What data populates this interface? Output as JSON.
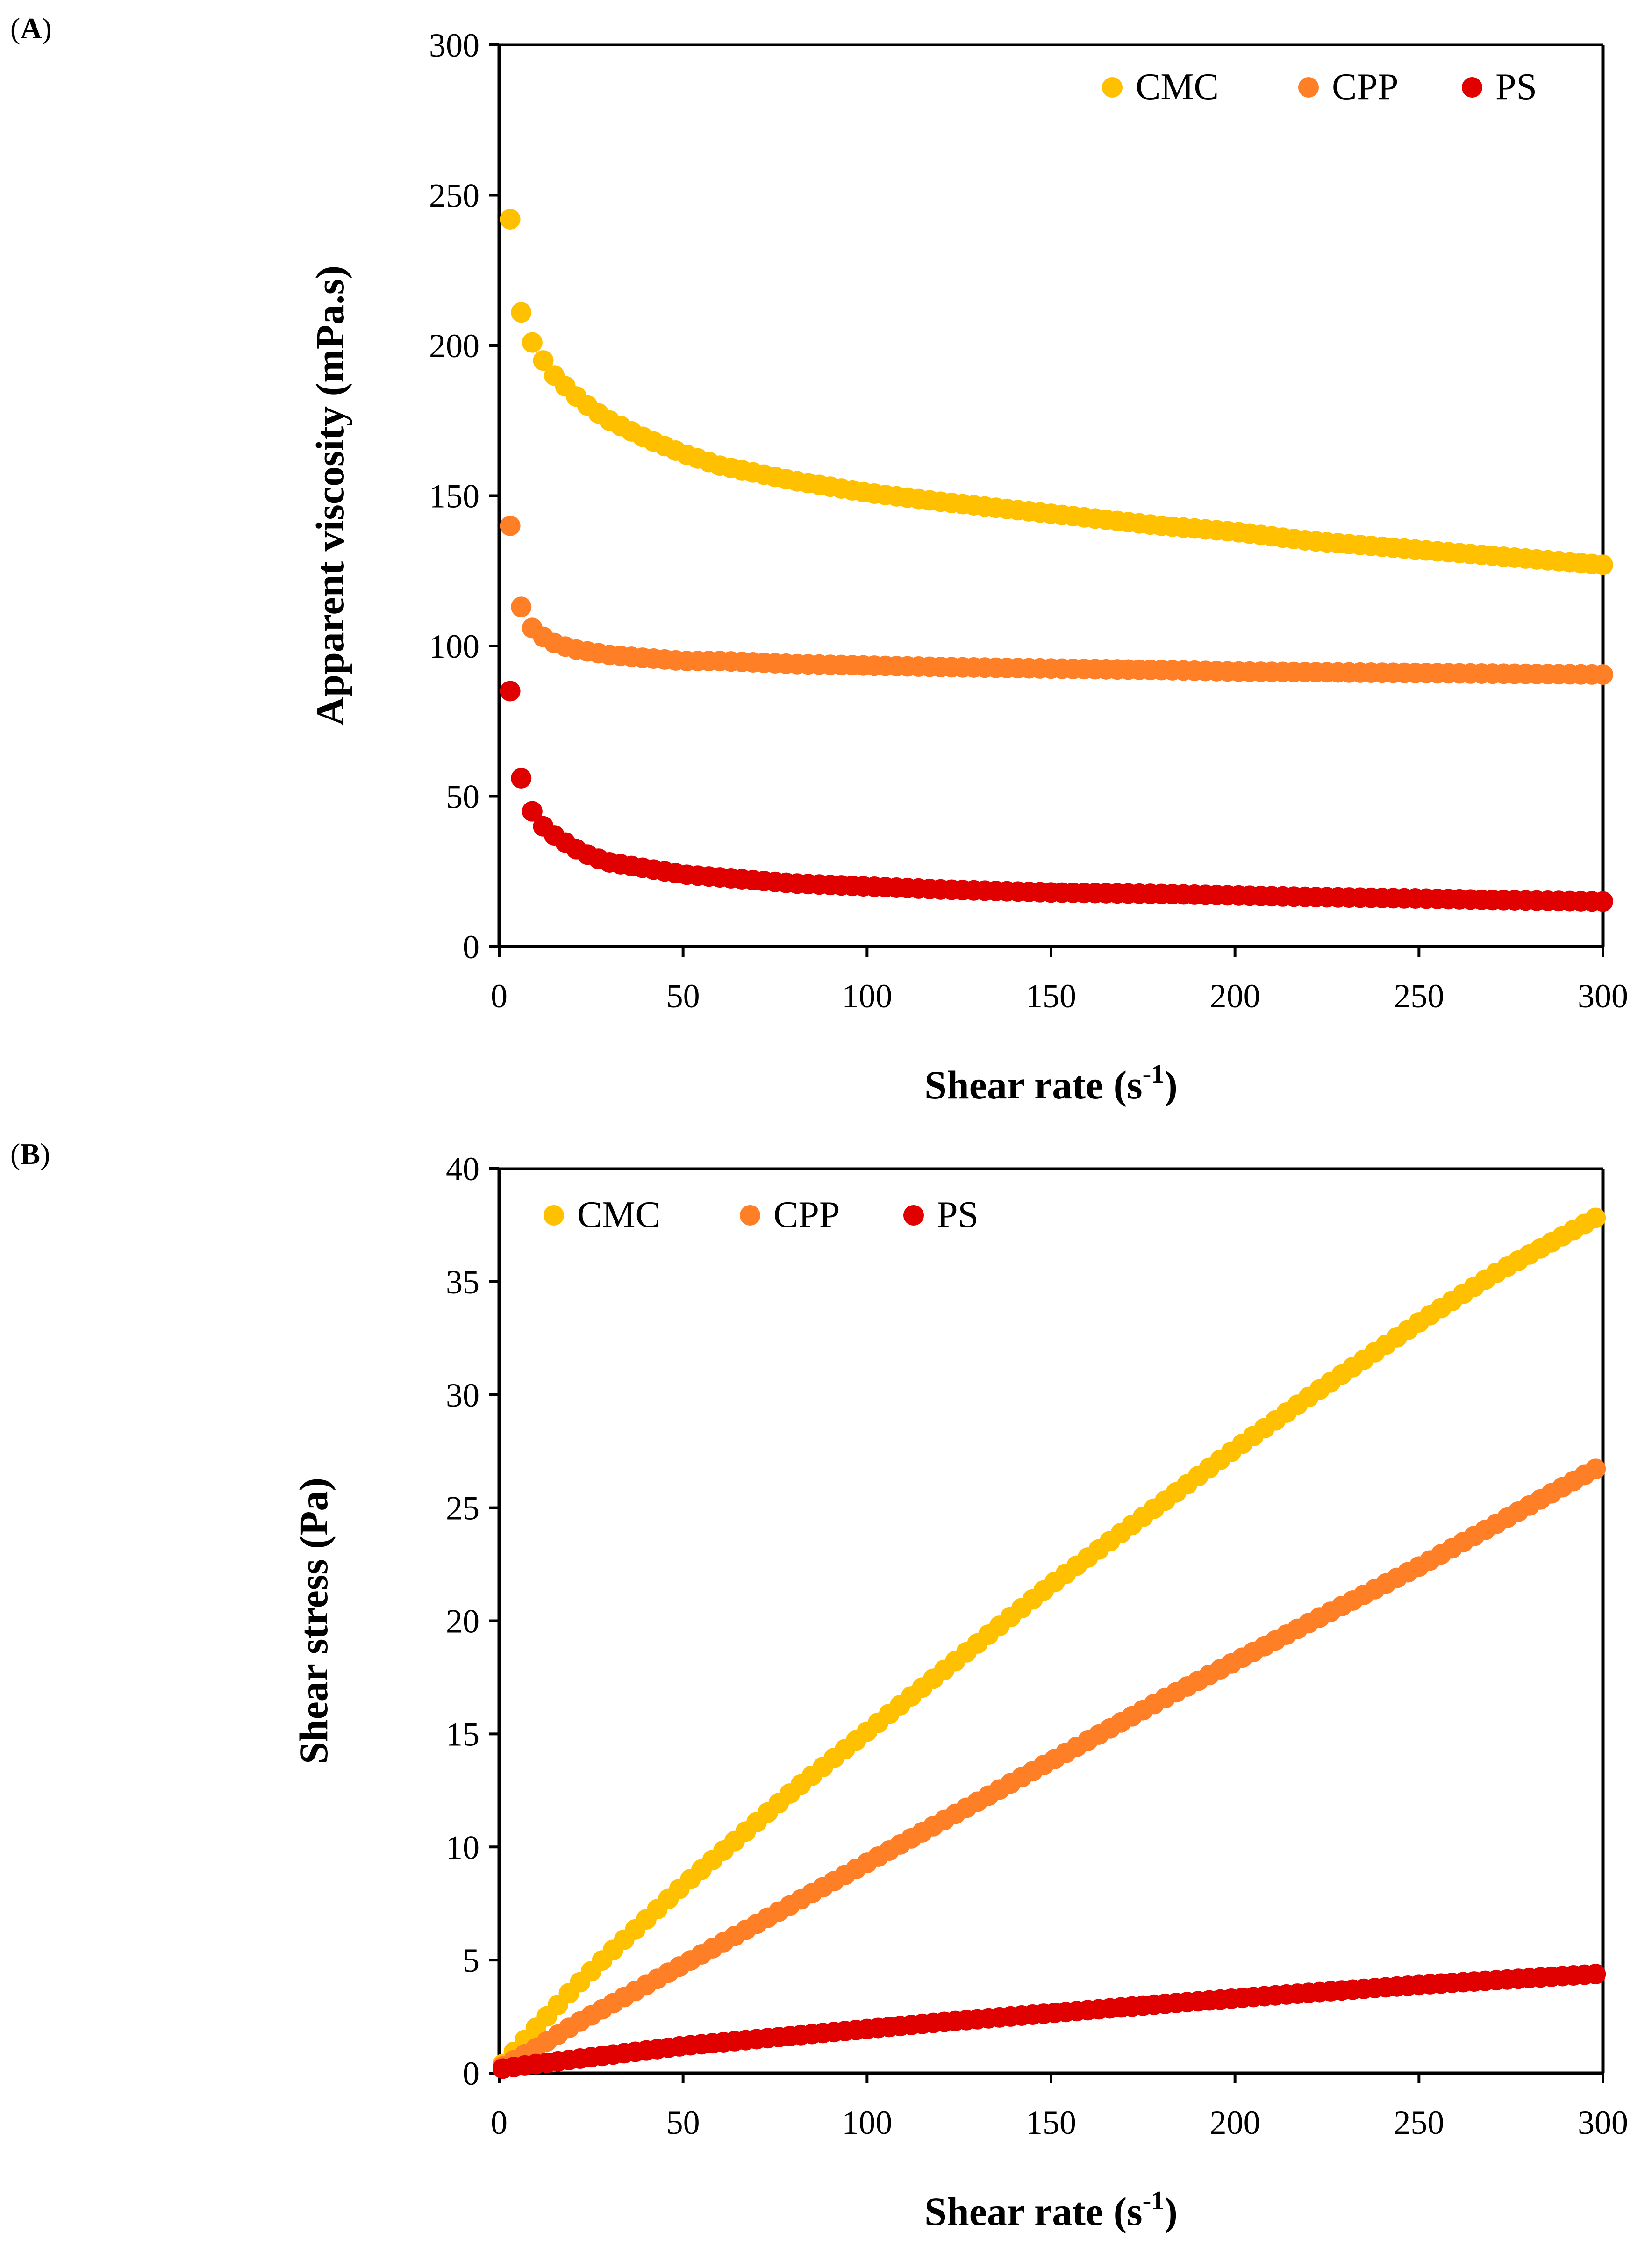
{
  "chart_data": [
    {
      "panel": "A",
      "type": "scatter",
      "title": "",
      "xlabel": "Shear rate (s",
      "xlabel_sup": "-1",
      "xlabel_tail": ")",
      "ylabel": "Apparent viscosity (mPa.s)",
      "xlim": [
        0,
        300
      ],
      "ylim": [
        0,
        300
      ],
      "xticks": [
        0,
        50,
        100,
        150,
        200,
        250,
        300
      ],
      "yticks": [
        0,
        50,
        100,
        150,
        200,
        250,
        300
      ],
      "legend": "top-right",
      "grid": false,
      "x": [
        3,
        6,
        9,
        12,
        15,
        20,
        25,
        30,
        40,
        50,
        60,
        80,
        100,
        120,
        150,
        180,
        200,
        220,
        250,
        270,
        300
      ],
      "series": [
        {
          "name": "CMC",
          "color": "#FFC000",
          "values": [
            242,
            211,
            201,
            195,
            190,
            184,
            179,
            175,
            169,
            164,
            160,
            155,
            151,
            148,
            144,
            140,
            138,
            135,
            132,
            130,
            127
          ]
        },
        {
          "name": "CPP",
          "color": "#FF7F27",
          "values": [
            140,
            113,
            106,
            103,
            101,
            99,
            98,
            97,
            96,
            95,
            95,
            94,
            93.5,
            93,
            92.5,
            92,
            91.5,
            91.3,
            91,
            90.8,
            90.5
          ]
        },
        {
          "name": "PS",
          "color": "#E00000",
          "values": [
            85,
            56,
            45,
            40,
            37,
            33,
            30,
            28,
            26,
            24,
            23,
            21,
            20,
            19,
            18,
            17.5,
            17,
            16.5,
            16,
            15.5,
            15
          ]
        }
      ]
    },
    {
      "panel": "B",
      "type": "scatter",
      "title": "",
      "xlabel": "Shear rate (s",
      "xlabel_sup": "-1",
      "xlabel_tail": ")",
      "ylabel": "Shear stress (Pa)",
      "xlim": [
        0,
        300
      ],
      "ylim": [
        0,
        40
      ],
      "xticks": [
        0,
        50,
        100,
        150,
        200,
        250,
        300
      ],
      "yticks": [
        0,
        5,
        10,
        15,
        20,
        25,
        30,
        35,
        40
      ],
      "legend": "top-left",
      "grid": false,
      "x": [
        1,
        10,
        20,
        30,
        40,
        50,
        60,
        80,
        100,
        120,
        150,
        180,
        200,
        220,
        250,
        270,
        300
      ],
      "series": [
        {
          "name": "CMC",
          "color": "#FFC000",
          "values": [
            0.4,
            2.0,
            3.7,
            5.3,
            6.8,
            8.3,
            9.7,
            12.5,
            15.1,
            17.7,
            21.6,
            25.2,
            27.6,
            29.9,
            33.2,
            35.3,
            38.0
          ]
        },
        {
          "name": "CPP",
          "color": "#FF7F27",
          "values": [
            0.3,
            1.1,
            2.1,
            3.0,
            3.9,
            4.8,
            5.7,
            7.5,
            9.3,
            11.1,
            13.8,
            16.5,
            18.2,
            19.9,
            22.4,
            24.2,
            26.9
          ]
        },
        {
          "name": "PS",
          "color": "#E00000",
          "values": [
            0.2,
            0.4,
            0.6,
            0.8,
            1.0,
            1.2,
            1.35,
            1.65,
            1.95,
            2.25,
            2.65,
            3.05,
            3.3,
            3.55,
            3.9,
            4.1,
            4.4
          ]
        }
      ]
    }
  ]
}
